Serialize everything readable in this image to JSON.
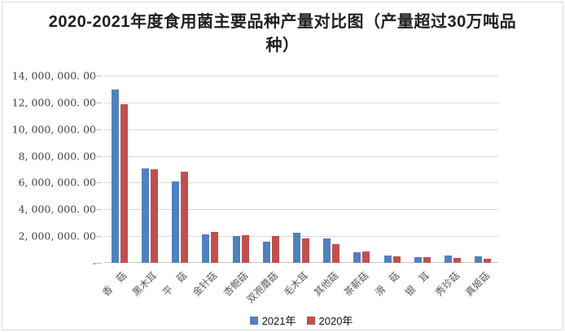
{
  "window": {
    "background": "#ffffff",
    "frame_border_color": "#d8d8d8"
  },
  "chart_data": {
    "type": "bar",
    "title": "2020-2021年度食用菌主要品种产量对比图（产量超过30万吨品种）",
    "categories": [
      "香　菇",
      "黑木耳",
      "平　菇",
      "金针菇",
      "杏鲍菇",
      "双孢蘑菇",
      "毛木耳",
      "其他菇",
      "茶薪菇",
      "滑　菇",
      "银　耳",
      "秀珍菇",
      "真姬菇"
    ],
    "series": [
      {
        "name": "2021年",
        "color": "#4F81BD",
        "values": [
          12960000,
          7060000,
          6090000,
          2130000,
          2010000,
          1600000,
          2230000,
          1830000,
          820000,
          550000,
          400000,
          560000,
          480000
        ]
      },
      {
        "name": "2020年",
        "color": "#C0504D",
        "values": [
          11880000,
          7030000,
          6820000,
          2300000,
          2090000,
          2010000,
          1830000,
          1430000,
          850000,
          490000,
          410000,
          380000,
          330000
        ]
      }
    ],
    "xlabel": "",
    "ylabel": "",
    "ylim": [
      0,
      14000000
    ],
    "y_tick_step": 2000000,
    "y_tick_labels_top_to_bottom": [
      "14, 000, 000. 00",
      "12, 000, 000. 00",
      "10, 000, 000. 00",
      "8, 000, 000. 00",
      "6, 000, 000. 00",
      "4, 000, 000. 00",
      "2, 000, 000. 00",
      "-"
    ],
    "grid": true,
    "legend_position": "bottom",
    "colors": {
      "gridline": "#D9D9D9",
      "axis_line": "#C6C6C6",
      "tick": "#BFBFBF",
      "y_label_text": "#3F3F3F",
      "x_label_text": "#595959",
      "title_text": "#1F1F1F",
      "legend_text": "#111111"
    }
  }
}
